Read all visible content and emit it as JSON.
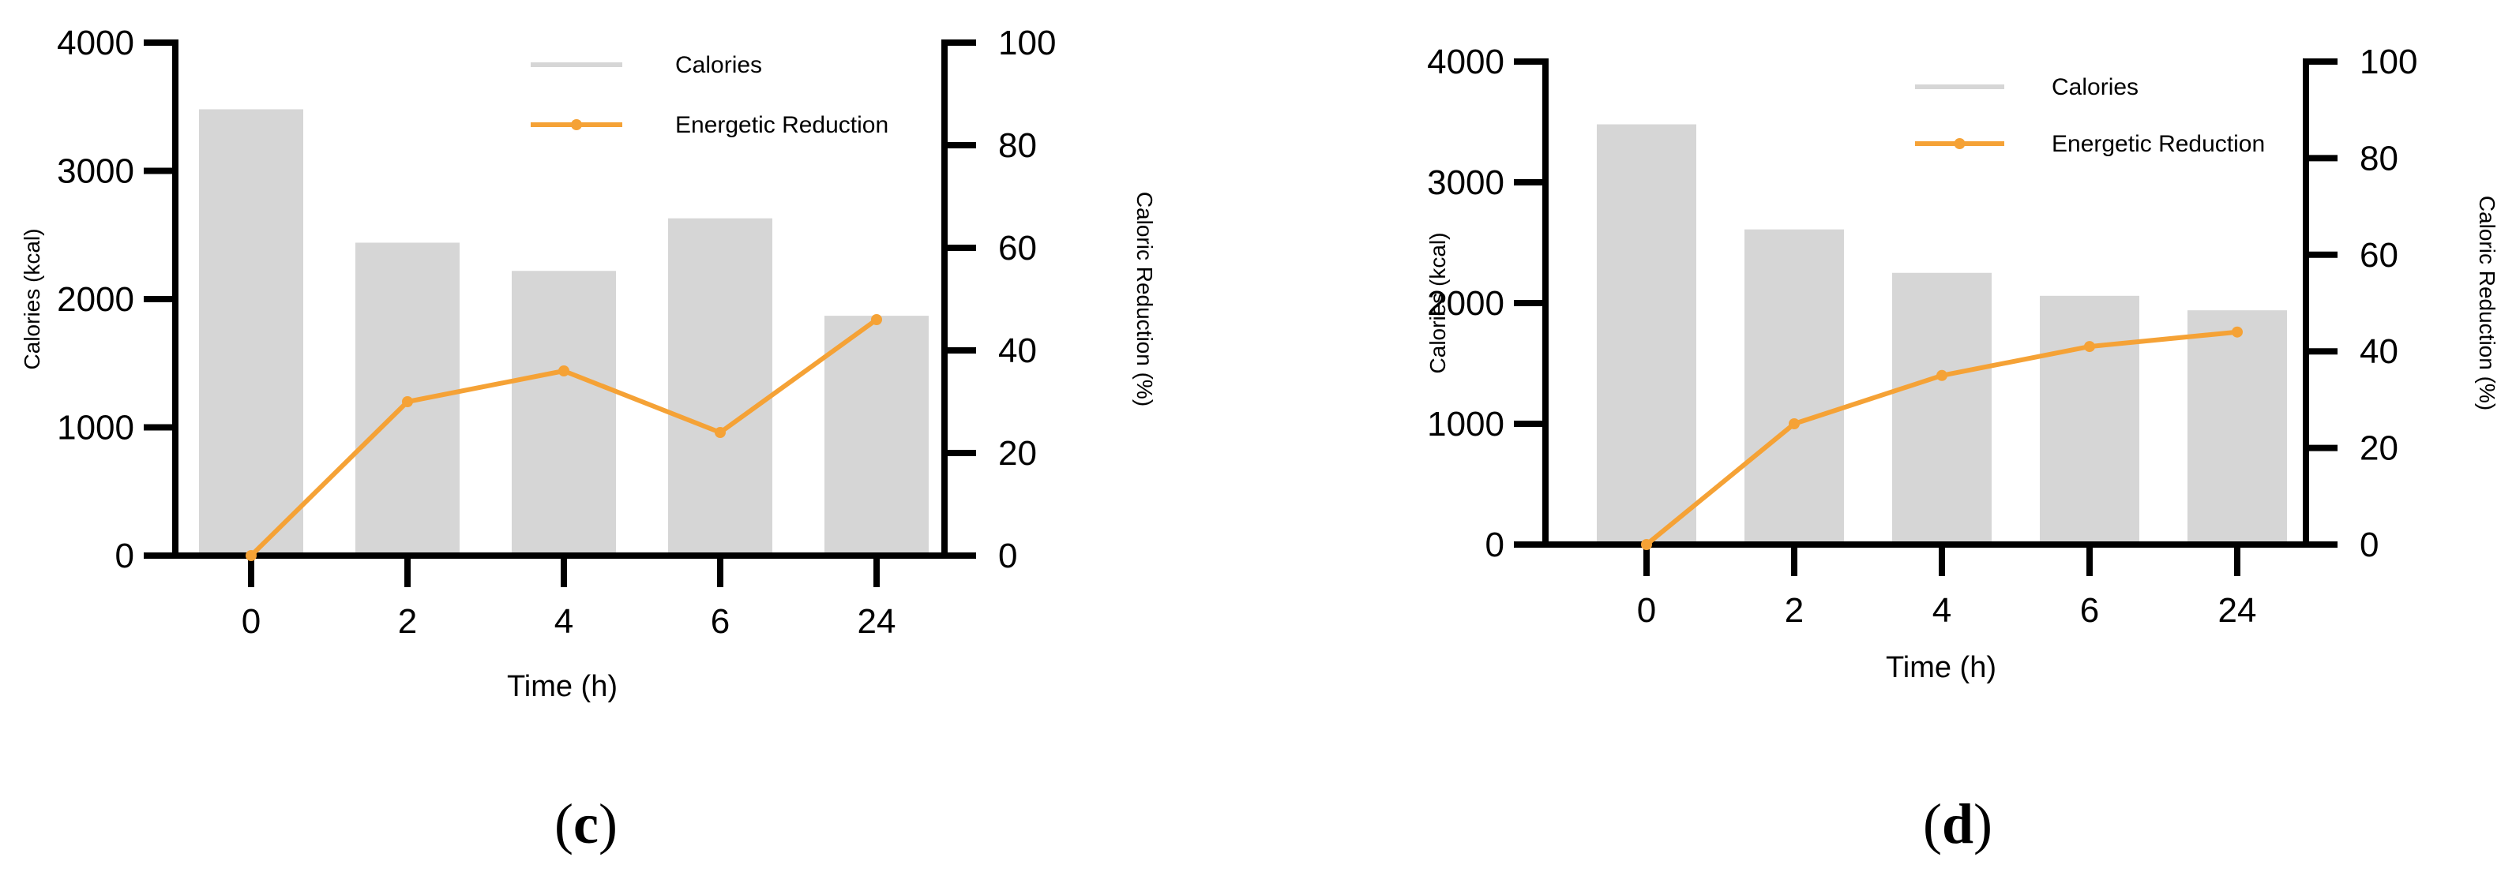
{
  "colors": {
    "bar": "#d6d6d6",
    "line": "#f5a236",
    "axis": "#000000"
  },
  "chart_data": [
    {
      "type": "bar",
      "panel_label_open": "(",
      "panel_label_letter": "c",
      "panel_label_close": ")",
      "categories": [
        "0",
        "2",
        "4",
        "6",
        "24"
      ],
      "xlabel": "Time (h)",
      "ylabel": "Calories (kcal)",
      "y2label": "Caloric Reduction (%)",
      "ylim": [
        0,
        4000
      ],
      "yticks": [
        "0",
        "1000",
        "2000",
        "3000",
        "4000"
      ],
      "y2lim": [
        0,
        100
      ],
      "y2ticks": [
        "0",
        "20",
        "40",
        "60",
        "80",
        "100"
      ],
      "grid": false,
      "legend_placement": "top-right",
      "series": [
        {
          "name": "Calories",
          "type": "bar",
          "axis": "left",
          "values": [
            3480,
            2440,
            2220,
            2630,
            1870
          ]
        },
        {
          "name": "Energetic Reduction",
          "type": "line",
          "axis": "right",
          "values": [
            0,
            30,
            36,
            24,
            46
          ]
        }
      ]
    },
    {
      "type": "bar",
      "panel_label_open": "(",
      "panel_label_letter": "d",
      "panel_label_close": ")",
      "categories": [
        "0",
        "2",
        "4",
        "6",
        "24"
      ],
      "xlabel": "Time (h)",
      "ylabel": "Calories (kcal)",
      "y2label": "Caloric Reduction (%)",
      "ylim": [
        0,
        4000
      ],
      "yticks": [
        "0",
        "1000",
        "2000",
        "3000",
        "4000"
      ],
      "y2lim": [
        0,
        100
      ],
      "y2ticks": [
        "0",
        "20",
        "40",
        "60",
        "80",
        "100"
      ],
      "grid": false,
      "legend_placement": "top-right",
      "series": [
        {
          "name": "Calories",
          "type": "bar",
          "axis": "left",
          "values": [
            3480,
            2610,
            2250,
            2060,
            1940
          ]
        },
        {
          "name": "Energetic Reduction",
          "type": "line",
          "axis": "right",
          "values": [
            0,
            25,
            35,
            41,
            44
          ]
        }
      ]
    }
  ]
}
